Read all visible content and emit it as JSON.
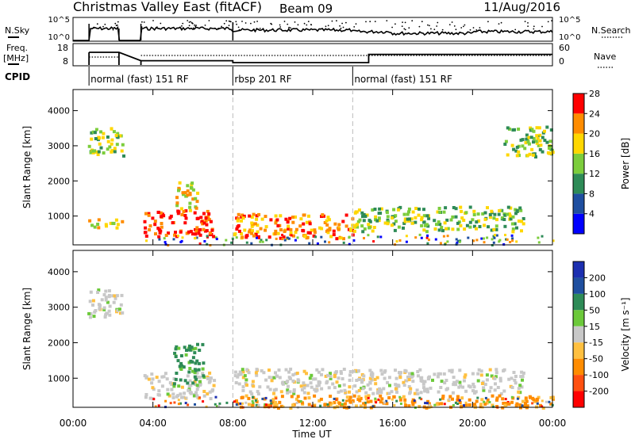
{
  "header": {
    "title": "Christmas Valley East (fitACF)",
    "beam": "Beam 09",
    "date": "11/Aug/2016"
  },
  "summary": {
    "nsky_label": "N.Sky",
    "nsearch_label": "N.Search",
    "freq_label_1": "Freq.",
    "freq_label_2": "[MHz]",
    "nave_label": "Nave",
    "cpid_label": "CPID",
    "left_ticks_top": [
      "10^5",
      "10^0"
    ],
    "left_ticks_freq": [
      "18",
      "8"
    ],
    "right_ticks_top": [
      "10^5",
      "10^0"
    ],
    "right_ticks_nave": [
      "60",
      "0"
    ],
    "cpid_segments": [
      {
        "start_h": 0.8,
        "label": "normal (fast) 151 RF"
      },
      {
        "start_h": 8.0,
        "label": "rbsp 201 RF"
      },
      {
        "start_h": 14.0,
        "label": "normal (fast) 151 RF"
      }
    ],
    "data_gaps_h": [
      [
        0.0,
        0.8
      ],
      [
        2.3,
        3.4
      ]
    ],
    "freq_steps": [
      {
        "from_h": 0.8,
        "to_h": 2.3,
        "mhz": 15.5
      },
      {
        "from_h": 3.4,
        "to_h": 8.0,
        "mhz": 10.2
      },
      {
        "from_h": 8.0,
        "to_h": 14.8,
        "mhz": 9.0
      },
      {
        "from_h": 14.8,
        "to_h": 24.0,
        "mhz": 14.2
      }
    ]
  },
  "chart_data": [
    {
      "type": "heatmap",
      "name": "power",
      "ylabel": "Slant Range [km]",
      "ylim": [
        180,
        4600
      ],
      "yticks": [
        "1000",
        "2000",
        "3000",
        "4000"
      ],
      "xlim_h": [
        0,
        24
      ],
      "colorbar_label": "Power [dB]",
      "colorbar_ticks": [
        "4",
        "8",
        "12",
        "16",
        "20",
        "24",
        "28"
      ],
      "colors": [
        "#0000ff",
        "#1f4fa0",
        "#2e8b57",
        "#7ccd3c",
        "#ffd700",
        "#ff8c00",
        "#ff0000"
      ],
      "features": [
        {
          "from_h": 0.7,
          "to_h": 2.5,
          "km_lo": 2750,
          "km_hi": 3550,
          "level": 3
        },
        {
          "from_h": 0.7,
          "to_h": 2.5,
          "km_lo": 700,
          "km_hi": 950,
          "level": 4
        },
        {
          "from_h": 3.5,
          "to_h": 7.0,
          "km_lo": 450,
          "km_hi": 1200,
          "level": 6
        },
        {
          "from_h": 5.0,
          "to_h": 6.2,
          "km_lo": 1200,
          "km_hi": 2000,
          "level": 4
        },
        {
          "from_h": 8.0,
          "to_h": 14.0,
          "km_lo": 400,
          "km_hi": 1100,
          "level": 5
        },
        {
          "from_h": 14.0,
          "to_h": 22.5,
          "km_lo": 600,
          "km_hi": 1300,
          "level": 3
        },
        {
          "from_h": 21.5,
          "to_h": 24.0,
          "km_lo": 2700,
          "km_hi": 3600,
          "level": 3
        }
      ]
    },
    {
      "type": "heatmap",
      "name": "velocity",
      "xlabel": "Time UT",
      "ylabel": "Slant Range [km]",
      "ylim": [
        180,
        4600
      ],
      "yticks": [
        "1000",
        "2000",
        "3000",
        "4000"
      ],
      "xticks": [
        "00:00",
        "04:00",
        "08:00",
        "12:00",
        "16:00",
        "20:00",
        "00:00"
      ],
      "xlim_h": [
        0,
        24
      ],
      "colorbar_label": "Velocity [m s⁻¹]",
      "colorbar_ticks": [
        "200",
        "100",
        "50",
        "15",
        "-15",
        "-50",
        "-100",
        "-200"
      ],
      "colors": [
        "#1c2fb0",
        "#1f4f9f",
        "#2e8b57",
        "#6cc93a",
        "#c8c8c8",
        "#ffc040",
        "#ff8c00",
        "#ff5010",
        "#ff0000"
      ],
      "features": [
        {
          "from_h": 0.7,
          "to_h": 2.5,
          "km_lo": 2750,
          "km_hi": 3550,
          "velocity": 0
        },
        {
          "from_h": 3.5,
          "to_h": 7.0,
          "km_lo": 450,
          "km_hi": 1200,
          "velocity": 0
        },
        {
          "from_h": 5.0,
          "to_h": 6.5,
          "km_lo": 800,
          "km_hi": 2000,
          "velocity": 40
        },
        {
          "from_h": 8.0,
          "to_h": 22.5,
          "km_lo": 600,
          "km_hi": 1300,
          "velocity": 0
        },
        {
          "from_h": 8.0,
          "to_h": 24.0,
          "km_lo": 200,
          "km_hi": 550,
          "velocity": -40
        }
      ]
    }
  ]
}
